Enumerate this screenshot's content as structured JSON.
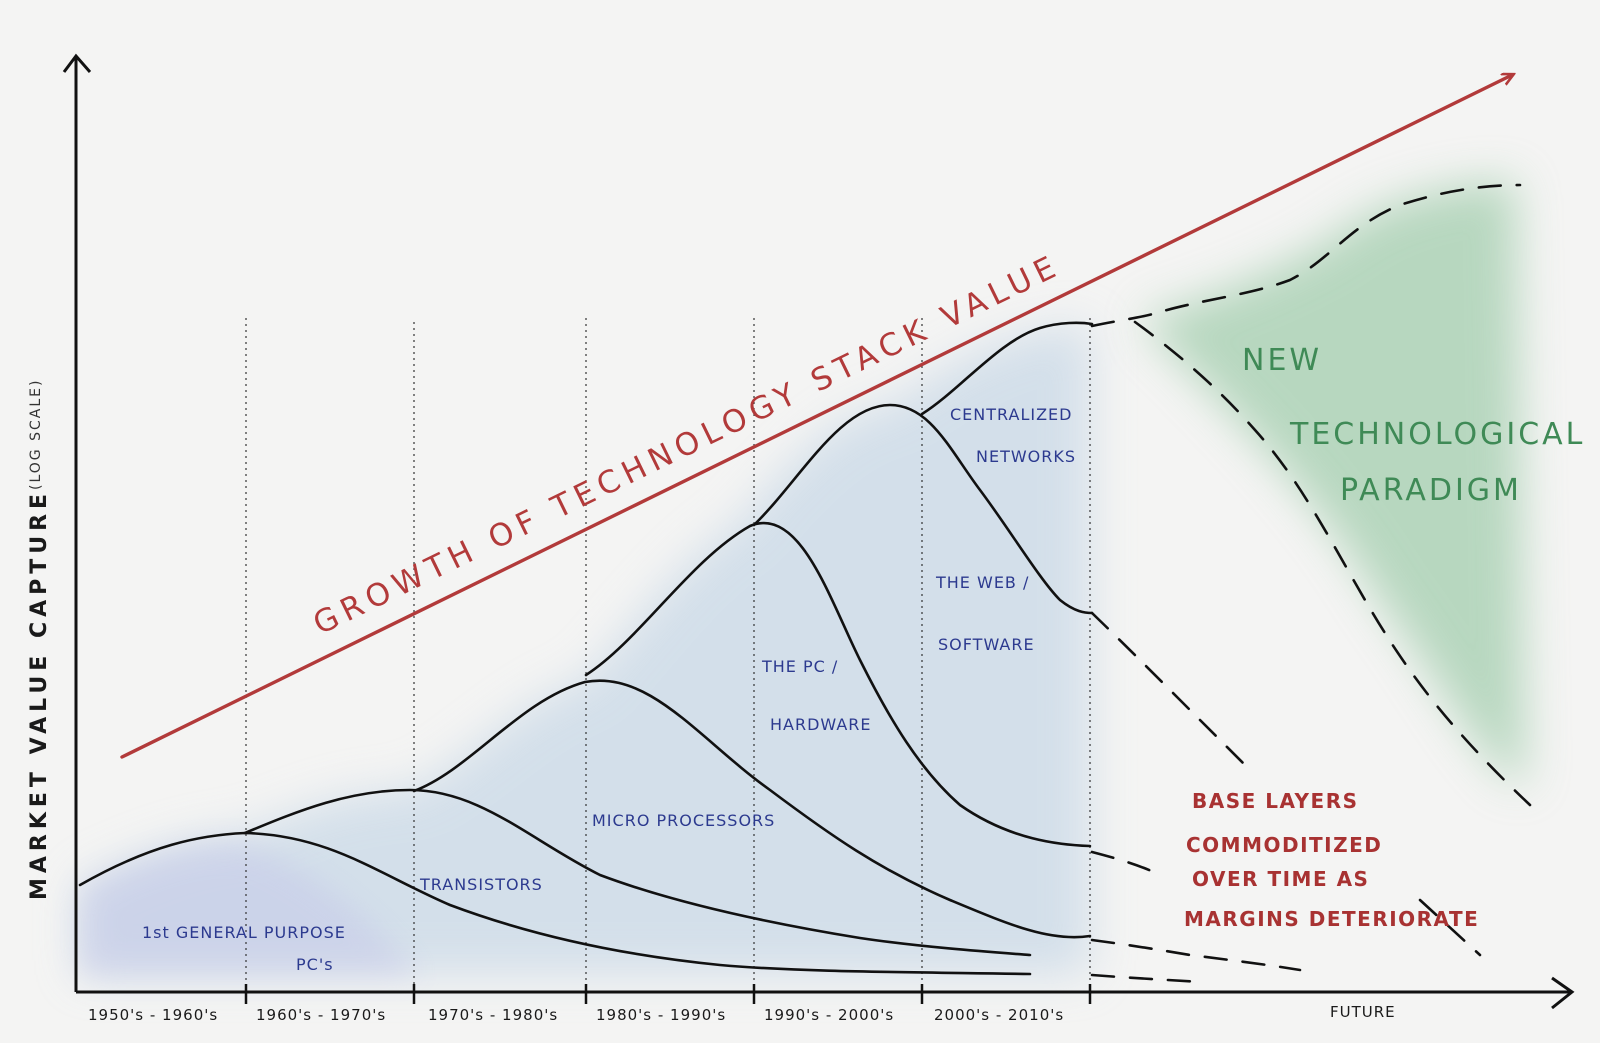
{
  "y_axis": {
    "title": "MARKET VALUE CAPTURE",
    "note": "(LOG SCALE)"
  },
  "x_axis": {
    "ticks": [
      "1950's - 1960's",
      "1960's - 1970's",
      "1970's - 1980's",
      "1980's - 1990's",
      "1990's - 2000's",
      "2000's - 2010's"
    ],
    "future_label": "FUTURE"
  },
  "eras": [
    {
      "line1": "1st GENERAL PURPOSE",
      "line2": "PC's"
    },
    {
      "line1": "TRANSISTORS",
      "line2": ""
    },
    {
      "line1": "MICRO PROCESSORS",
      "line2": ""
    },
    {
      "line1": "THE PC /",
      "line2": "HARDWARE"
    },
    {
      "line1": "THE WEB /",
      "line2": "SOFTWARE"
    },
    {
      "line1": "CENTRALIZED",
      "line2": "NETWORKS"
    }
  ],
  "trend": {
    "label": "GROWTH OF TECHNOLOGY STACK VALUE"
  },
  "paradigm": {
    "line1": "NEW",
    "line2": "TECHNOLOGICAL",
    "line3": "PARADIGM"
  },
  "commoditized": {
    "line1": "BASE LAYERS",
    "line2": "COMMODITIZED",
    "line3": "OVER TIME AS",
    "line4": "MARGINS DETERIORATE"
  },
  "colors": {
    "trend": "#b23a3a",
    "paradigm": "#3f8a56",
    "era_text": "#2c3a8f",
    "wash": "#b9cfe3"
  }
}
